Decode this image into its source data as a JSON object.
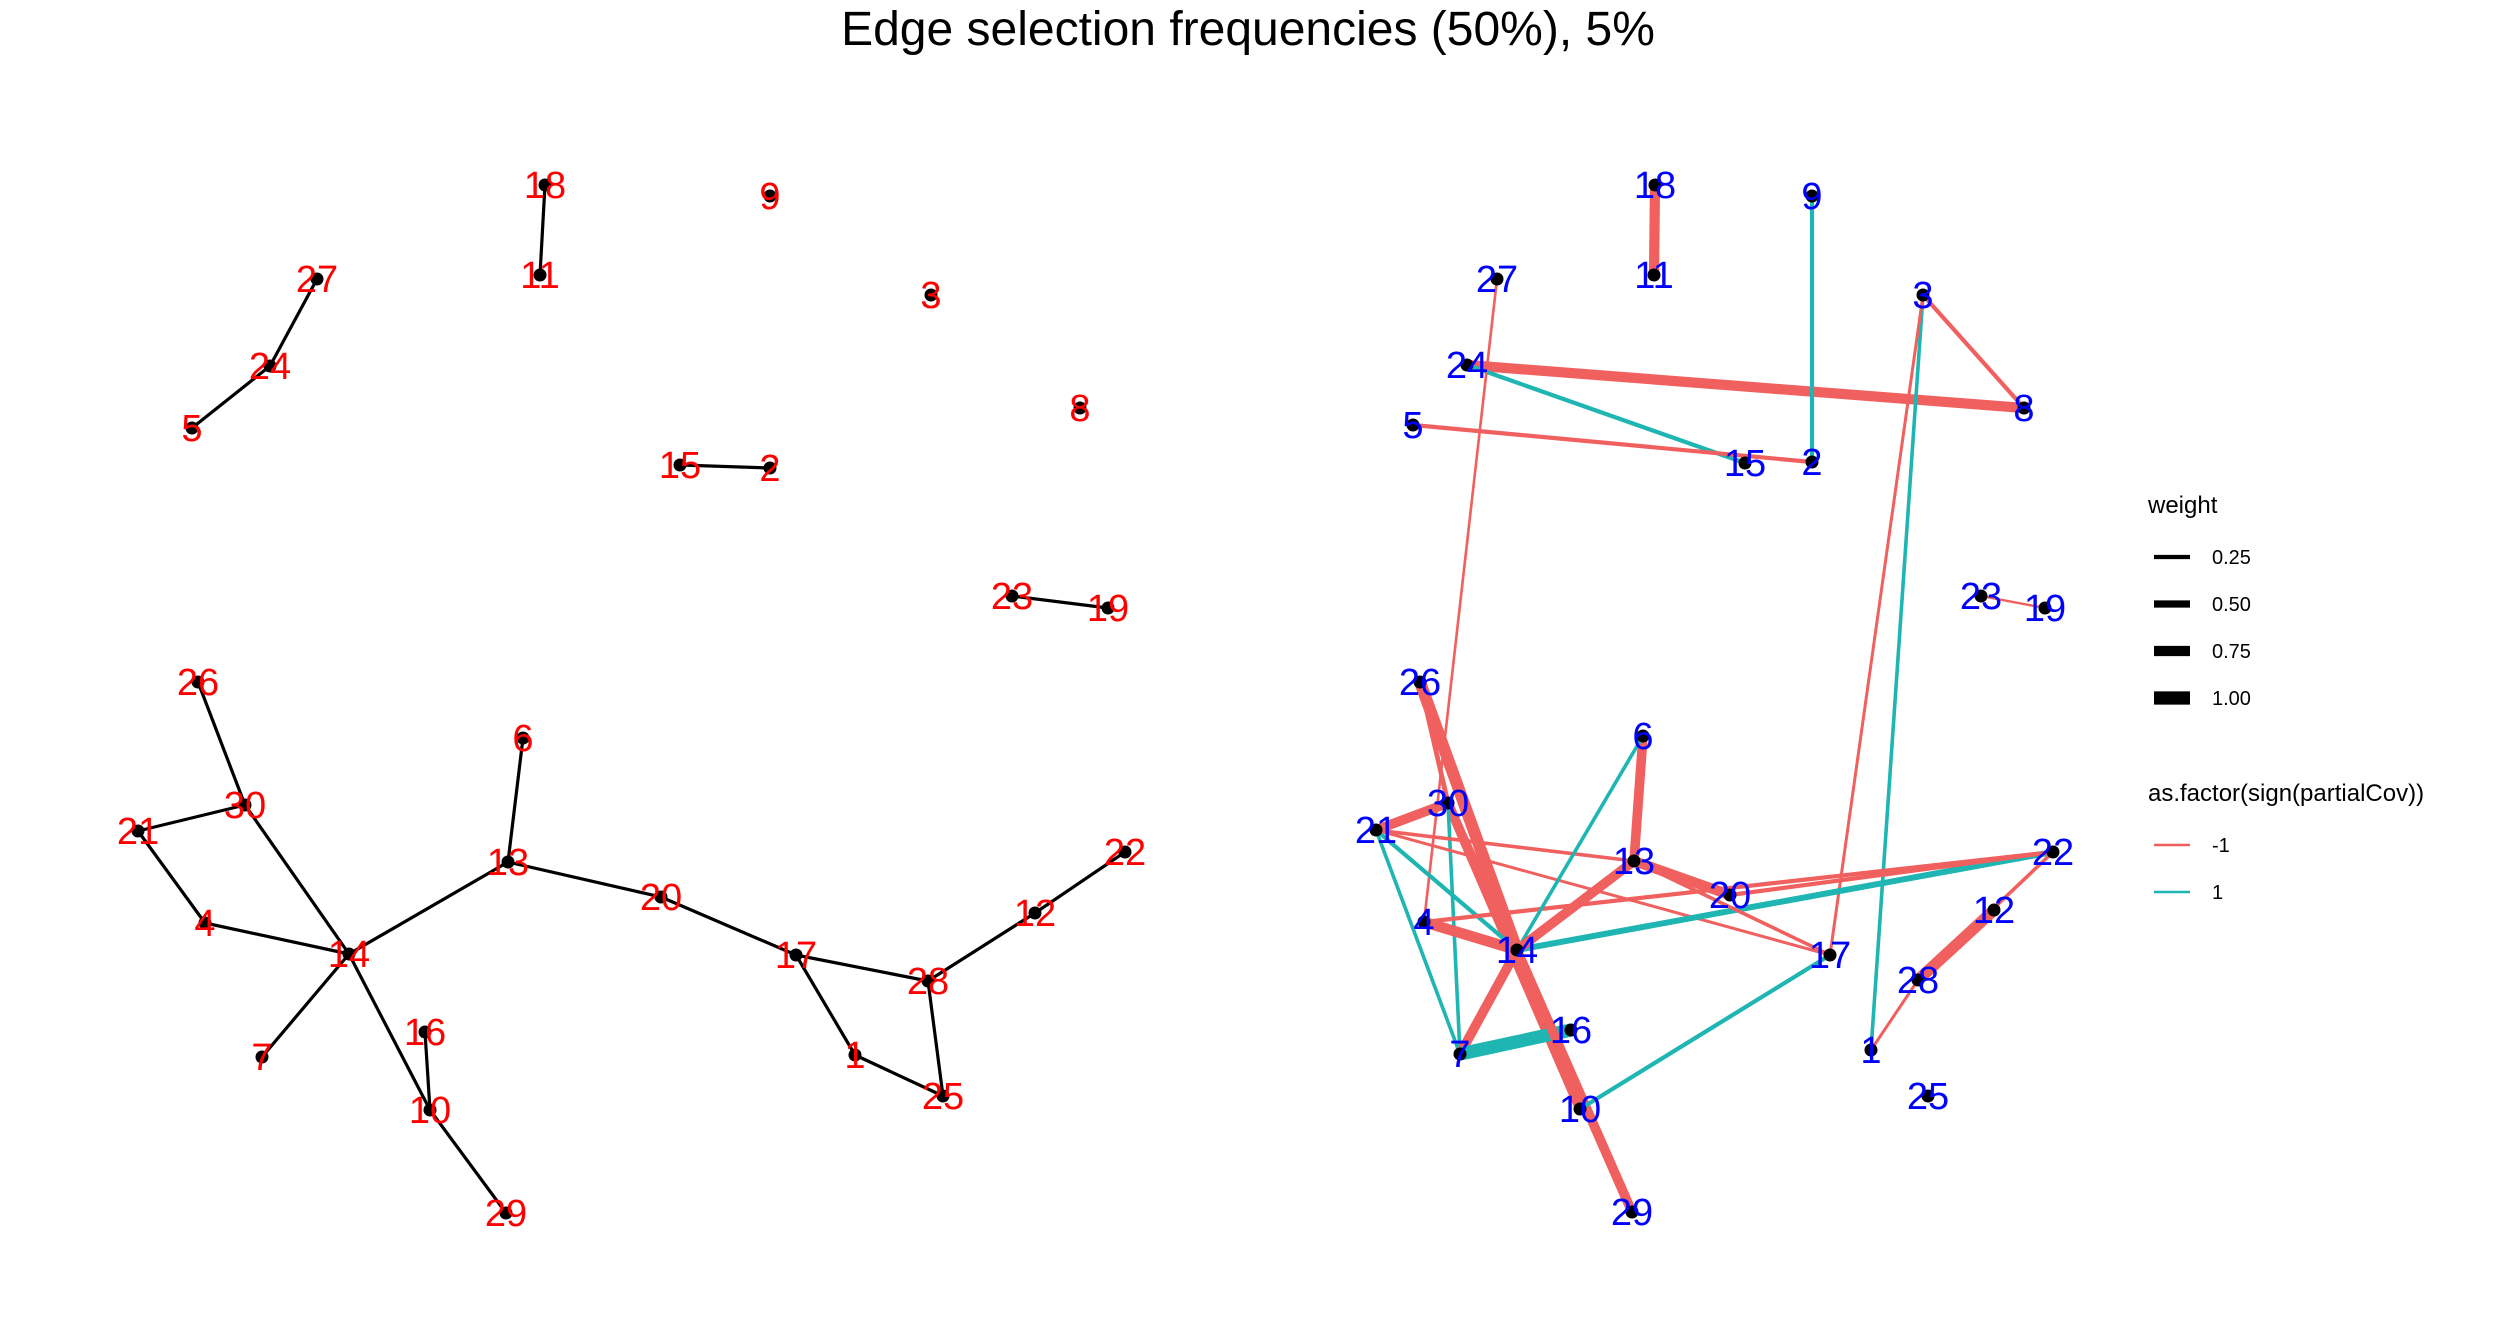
{
  "title": "Edge selection frequencies (50%), 5%",
  "colors": {
    "left_label": "#ff0000",
    "right_label": "#0000ff",
    "left_edge": "#000000",
    "neg": "#f0605e",
    "pos": "#1fb5b2",
    "node": "#000000"
  },
  "legend": {
    "weight": {
      "title": "weight",
      "items": [
        {
          "label": "0.25",
          "value": 0.25
        },
        {
          "label": "0.50",
          "value": 0.5
        },
        {
          "label": "0.75",
          "value": 0.75
        },
        {
          "label": "1.00",
          "value": 1.0
        }
      ]
    },
    "sign": {
      "title": "as.factor(sign(partialCov))",
      "items": [
        {
          "label": "-1",
          "color": "#f0605e"
        },
        {
          "label": "1",
          "color": "#1fb5b2"
        }
      ]
    }
  },
  "left_network": {
    "nodes": [
      "1",
      "2",
      "3",
      "4",
      "5",
      "6",
      "7",
      "8",
      "9",
      "10",
      "11",
      "12",
      "13",
      "14",
      "15",
      "16",
      "17",
      "18",
      "19",
      "20",
      "21",
      "22",
      "23",
      "24",
      "25",
      "26",
      "27",
      "28",
      "29",
      "30"
    ],
    "edges": [
      {
        "from": "18",
        "to": "11"
      },
      {
        "from": "27",
        "to": "24"
      },
      {
        "from": "24",
        "to": "5"
      },
      {
        "from": "15",
        "to": "2"
      },
      {
        "from": "23",
        "to": "19"
      },
      {
        "from": "26",
        "to": "30"
      },
      {
        "from": "21",
        "to": "30"
      },
      {
        "from": "21",
        "to": "4"
      },
      {
        "from": "4",
        "to": "14"
      },
      {
        "from": "30",
        "to": "14"
      },
      {
        "from": "6",
        "to": "13"
      },
      {
        "from": "13",
        "to": "14"
      },
      {
        "from": "13",
        "to": "20"
      },
      {
        "from": "20",
        "to": "17"
      },
      {
        "from": "17",
        "to": "28"
      },
      {
        "from": "17",
        "to": "1"
      },
      {
        "from": "1",
        "to": "25"
      },
      {
        "from": "28",
        "to": "25"
      },
      {
        "from": "28",
        "to": "12"
      },
      {
        "from": "12",
        "to": "22"
      },
      {
        "from": "14",
        "to": "7"
      },
      {
        "from": "14",
        "to": "10"
      },
      {
        "from": "16",
        "to": "10"
      },
      {
        "from": "10",
        "to": "29"
      }
    ]
  },
  "right_network": {
    "nodes": [
      "1",
      "2",
      "3",
      "4",
      "5",
      "6",
      "7",
      "8",
      "9",
      "10",
      "11",
      "12",
      "13",
      "14",
      "15",
      "16",
      "17",
      "18",
      "19",
      "20",
      "21",
      "22",
      "23",
      "24",
      "25",
      "26",
      "27",
      "28",
      "29",
      "30"
    ],
    "edges": [
      {
        "from": "18",
        "to": "11",
        "sign": -1,
        "weight": 0.75
      },
      {
        "from": "24",
        "to": "8",
        "sign": -1,
        "weight": 0.75
      },
      {
        "from": "9",
        "to": "2",
        "sign": 1,
        "weight": 0.25
      },
      {
        "from": "24",
        "to": "15",
        "sign": 1,
        "weight": 0.25
      },
      {
        "from": "5",
        "to": "2",
        "sign": -1,
        "weight": 0.25
      },
      {
        "from": "3",
        "to": "8",
        "sign": -1,
        "weight": 0.25
      },
      {
        "from": "3",
        "to": "1",
        "sign": 1,
        "weight": 0.2
      },
      {
        "from": "3",
        "to": "17",
        "sign": -1,
        "weight": 0.15
      },
      {
        "from": "27",
        "to": "4",
        "sign": -1,
        "weight": 0.12
      },
      {
        "from": "23",
        "to": "19",
        "sign": -1,
        "weight": 0.1
      },
      {
        "from": "26",
        "to": "14",
        "sign": -1,
        "weight": 0.9
      },
      {
        "from": "26",
        "to": "30",
        "sign": -1,
        "weight": 0.3
      },
      {
        "from": "21",
        "to": "30",
        "sign": -1,
        "weight": 0.7
      },
      {
        "from": "30",
        "to": "14",
        "sign": -1,
        "weight": 0.5
      },
      {
        "from": "30",
        "to": "10",
        "sign": -1,
        "weight": 0.7
      },
      {
        "from": "30",
        "to": "7",
        "sign": 1,
        "weight": 0.2
      },
      {
        "from": "21",
        "to": "14",
        "sign": 1,
        "weight": 0.25
      },
      {
        "from": "21",
        "to": "7",
        "sign": 1,
        "weight": 0.2
      },
      {
        "from": "21",
        "to": "13",
        "sign": -1,
        "weight": 0.2
      },
      {
        "from": "21",
        "to": "17",
        "sign": -1,
        "weight": 0.15
      },
      {
        "from": "4",
        "to": "14",
        "sign": -1,
        "weight": 0.8
      },
      {
        "from": "4",
        "to": "22",
        "sign": -1,
        "weight": 0.25
      },
      {
        "from": "14",
        "to": "22",
        "sign": 1,
        "weight": 0.4
      },
      {
        "from": "6",
        "to": "13",
        "sign": -1,
        "weight": 0.7
      },
      {
        "from": "6",
        "to": "14",
        "sign": 1,
        "weight": 0.2
      },
      {
        "from": "13",
        "to": "14",
        "sign": -1,
        "weight": 0.7
      },
      {
        "from": "13",
        "to": "20",
        "sign": -1,
        "weight": 0.75
      },
      {
        "from": "13",
        "to": "17",
        "sign": -1,
        "weight": 0.2
      },
      {
        "from": "20",
        "to": "22",
        "sign": -1,
        "weight": 0.25
      },
      {
        "from": "14",
        "to": "7",
        "sign": -1,
        "weight": 0.7
      },
      {
        "from": "7",
        "to": "16",
        "sign": 1,
        "weight": 1.0
      },
      {
        "from": "14",
        "to": "29",
        "sign": -1,
        "weight": 0.7
      },
      {
        "from": "10",
        "to": "17",
        "sign": 1,
        "weight": 0.25
      },
      {
        "from": "14",
        "to": "10",
        "sign": -1,
        "weight": 0.15
      },
      {
        "from": "12",
        "to": "28",
        "sign": -1,
        "weight": 0.85
      },
      {
        "from": "28",
        "to": "1",
        "sign": -1,
        "weight": 0.15
      },
      {
        "from": "28",
        "to": "22",
        "sign": -1,
        "weight": 0.2
      }
    ]
  }
}
